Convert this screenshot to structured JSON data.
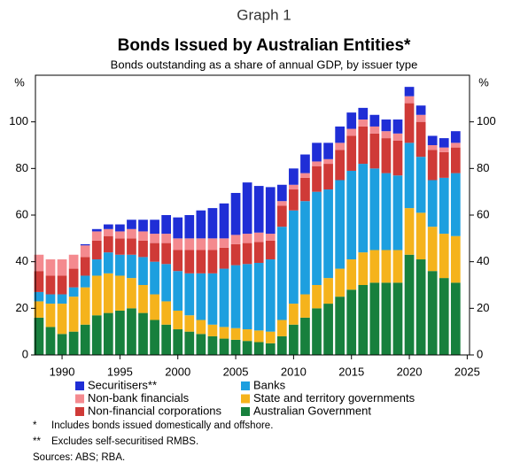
{
  "chart_data": {
    "type": "stacked_bar",
    "heading": "Graph 1",
    "title": "Bonds Issued by Australian Entities*",
    "subtitle": "Bonds outstanding as a share of annual GDP, by issuer type",
    "y_label": "%",
    "y2_label": "%",
    "x": [
      1988,
      1989,
      1990,
      1991,
      1992,
      1993,
      1994,
      1995,
      1996,
      1997,
      1998,
      1999,
      2000,
      2001,
      2002,
      2003,
      2004,
      2005,
      2006,
      2007,
      2008,
      2009,
      2010,
      2011,
      2012,
      2013,
      2014,
      2015,
      2016,
      2017,
      2018,
      2019,
      2020,
      2021,
      2022,
      2023,
      2024
    ],
    "xlim": [
      1987.7,
      2025.2
    ],
    "xticks": [
      1990,
      1995,
      2000,
      2005,
      2010,
      2015,
      2020,
      2025
    ],
    "ylim": [
      0,
      120
    ],
    "yticks": [
      0,
      20,
      40,
      60,
      80,
      100
    ],
    "y2lim": [
      0,
      120
    ],
    "y2ticks": [
      0,
      20,
      40,
      60,
      80,
      100
    ],
    "series": [
      {
        "name": "Australian Government",
        "color": "#17803d",
        "values": [
          16,
          12,
          9,
          10,
          13,
          17,
          18,
          19,
          20,
          18,
          15,
          13,
          11,
          10,
          9,
          8,
          7,
          6.5,
          6,
          5.5,
          5,
          8,
          13,
          16,
          20,
          22,
          25,
          28,
          30,
          31,
          31,
          31,
          43,
          41,
          36,
          33,
          31
        ]
      },
      {
        "name": "State and territory governments",
        "color": "#f5b31c",
        "values": [
          7,
          10,
          13,
          15,
          16,
          17,
          17,
          15,
          13,
          12,
          11,
          10,
          8,
          7,
          6,
          5,
          5,
          5,
          5,
          5,
          5,
          7,
          9,
          10,
          10,
          11,
          12,
          13,
          14,
          14,
          14,
          14,
          20,
          20,
          19,
          19,
          20
        ]
      },
      {
        "name": "Banks",
        "color": "#1d9fdf",
        "values": [
          4,
          4,
          4,
          4,
          5,
          7,
          9,
          9,
          10,
          12,
          14,
          16,
          17,
          18,
          20,
          22,
          25,
          27,
          28,
          29,
          31,
          40,
          40,
          40,
          40,
          38,
          38,
          38,
          38,
          35,
          33,
          32,
          28,
          24,
          20,
          24,
          27
        ]
      },
      {
        "name": "Non-financial corporations",
        "color": "#cf3a37",
        "values": [
          9,
          8,
          8,
          8,
          8,
          8,
          7,
          7,
          7,
          7,
          8,
          9,
          9,
          10,
          10,
          10,
          9,
          9,
          9,
          9,
          8,
          9,
          9,
          10,
          11,
          11,
          13,
          15,
          16,
          15,
          15,
          15,
          17,
          15,
          13,
          11,
          11
        ]
      },
      {
        "name": "Non-bank financials",
        "color": "#f48a8f",
        "values": [
          7,
          7,
          7,
          6,
          5,
          4,
          3,
          3,
          4,
          4,
          4,
          4,
          5,
          5,
          5,
          5,
          4,
          4,
          4,
          4,
          3,
          2,
          2,
          2,
          2,
          2,
          3,
          3,
          3,
          3,
          3,
          3,
          3,
          3,
          2,
          2,
          2
        ]
      },
      {
        "name": "Securitisers**",
        "color": "#1f2ed6",
        "values": [
          0,
          0,
          0,
          0,
          0.5,
          1,
          2,
          3,
          4,
          5,
          6,
          8,
          9,
          10,
          12,
          13,
          15,
          18,
          22,
          20,
          20,
          7,
          7,
          8,
          8,
          7,
          7,
          7,
          5,
          5,
          5,
          6,
          4,
          4,
          4,
          4,
          5
        ]
      }
    ],
    "notes": [
      {
        "marker": "*",
        "text": "Includes bonds issued domestically and offshore."
      },
      {
        "marker": "**",
        "text": "Excludes self-securitised RMBS."
      }
    ],
    "sources": "Sources:  ABS; RBA."
  }
}
